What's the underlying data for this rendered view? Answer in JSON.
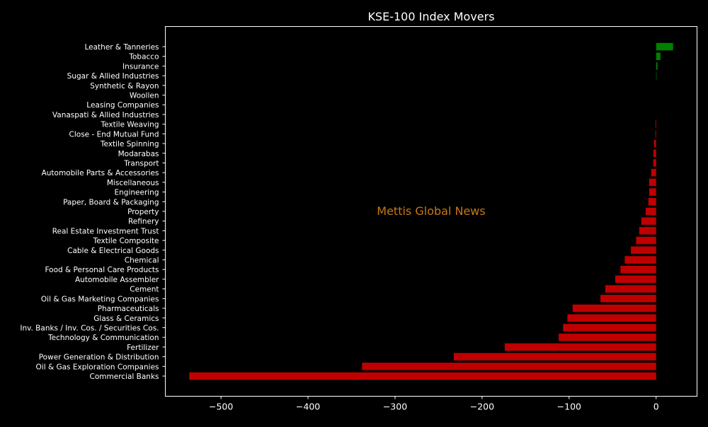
{
  "chart_data": {
    "type": "bar",
    "orientation": "horizontal",
    "title": "KSE-100 Index Movers",
    "watermark": "Mettis Global News",
    "xlabel": "",
    "ylabel": "",
    "xlim": [
      -564,
      47
    ],
    "xticks": [
      -500,
      -400,
      -300,
      -200,
      -100,
      0
    ],
    "xtick_labels": [
      "−500",
      "−400",
      "−300",
      "−200",
      "−100",
      "0"
    ],
    "grid": false,
    "colors": {
      "positive": "#008000",
      "negative": "#c00000",
      "background": "#000000",
      "watermark": "#c87814"
    },
    "categories": [
      "Leather & Tanneries",
      "Tobacco",
      "Insurance",
      "Sugar & Allied Industries",
      "Synthetic & Rayon",
      "Woollen",
      "Leasing Companies",
      "Vanaspati & Allied Industries",
      "Textile Weaving",
      "Close - End Mutual Fund",
      "Textile Spinning",
      "Modarabas",
      "Transport",
      "Automobile Parts & Accessories",
      "Miscellaneous",
      "Engineering",
      "Paper, Board & Packaging",
      "Property",
      "Refinery",
      "Real Estate Investment Trust",
      "Textile Composite",
      "Cable & Electrical Goods",
      "Chemical",
      "Food & Personal Care Products",
      "Automobile Assembler",
      "Cement",
      "Oil & Gas Marketing Companies",
      "Pharmaceuticals",
      "Glass & Ceramics",
      "Inv. Banks / Inv. Cos. / Securities Cos.",
      "Technology & Communication",
      "Fertilizer",
      "Power Generation & Distribution",
      "Oil & Gas Exploration Companies",
      "Commercial Banks"
    ],
    "values": [
      19.5,
      5,
      1.6,
      0.5,
      0,
      0,
      0,
      0,
      -0.8,
      -0.8,
      -2.4,
      -3.2,
      -3.3,
      -5.7,
      -8,
      -8,
      -9,
      -12,
      -17,
      -19.5,
      -23,
      -29,
      -36,
      -41,
      -47,
      -58.5,
      -64,
      -96,
      -102,
      -107,
      -112,
      -174,
      -232.5,
      -338,
      -536.5
    ]
  }
}
